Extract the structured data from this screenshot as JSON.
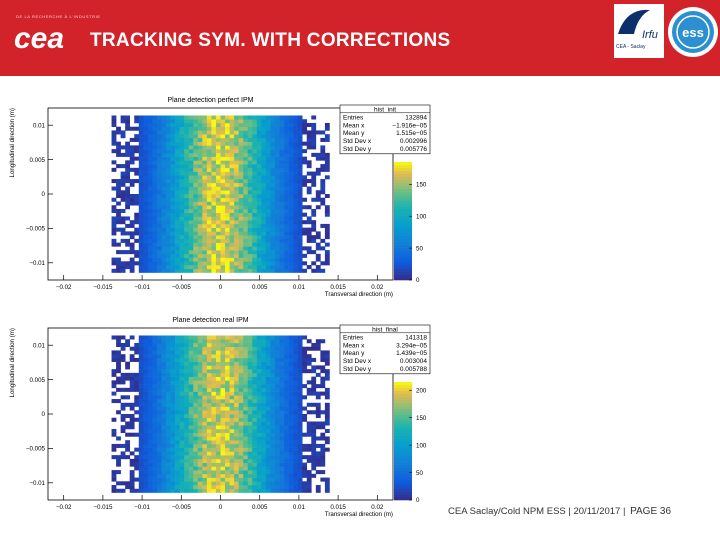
{
  "header": {
    "tagline": "DE LA RECHERCHE À L'INDUSTRIE",
    "logo_text": "cea",
    "title": "TRACKING SYM. WITH CORRECTIONS",
    "lab_logo_text": "Irfu",
    "lab_caption": "CEA - Saclay",
    "partner_logo_text": "ess",
    "brand_color": "#d2232a"
  },
  "footer": {
    "text": "CEA Saclay/Cold NPM ESS | 20/11/2017 |",
    "page": "PAGE 36"
  },
  "chart_data": [
    {
      "type": "heatmap",
      "title": "Plane detection perfect IPM",
      "xlabel": "Transversal direction (m)",
      "ylabel": "Longitudinal direction (m)",
      "xlim": [
        -0.022,
        0.022
      ],
      "ylim": [
        -0.0125,
        0.0125
      ],
      "x_ticks": [
        -0.02,
        -0.015,
        -0.01,
        -0.005,
        0,
        0.005,
        0.01,
        0.015,
        0.02
      ],
      "x_tick_labels": [
        "−0.02",
        "−0.015",
        "−0.01",
        "−0.005",
        "0",
        "0.005",
        "0.01",
        "0.015",
        "0.02"
      ],
      "y_ticks": [
        -0.01,
        -0.005,
        0,
        0.005,
        0.01
      ],
      "y_tick_labels": [
        "−0.01",
        "−0.005",
        "0",
        "0.005",
        "0.01"
      ],
      "z_ticks": [
        0,
        50,
        100,
        150
      ],
      "z_tick_labels": [
        "0",
        "50",
        "100",
        "150"
      ],
      "z_max": 185,
      "distribution": {
        "core_half_width": 0.0105,
        "sigma_x": 0.005,
        "y_min": -0.0115,
        "y_max": 0.0115,
        "peak": 170
      },
      "stats": {
        "name": "hist_init",
        "rows": [
          {
            "label": "Entries",
            "value": "132894"
          },
          {
            "label": "Mean x",
            "value": "−1.916e−05"
          },
          {
            "label": "Mean y",
            "value": "1.515e−05"
          },
          {
            "label": "Std Dev x",
            "value": "0.002996"
          },
          {
            "label": "Std Dev y",
            "value": "0.005776"
          }
        ]
      }
    },
    {
      "type": "heatmap",
      "title": "Plane detection real IPM",
      "xlabel": "Transversal direction (m)",
      "ylabel": "Longitudinal direction (m)",
      "xlim": [
        -0.022,
        0.022
      ],
      "ylim": [
        -0.0125,
        0.0125
      ],
      "x_ticks": [
        -0.02,
        -0.015,
        -0.01,
        -0.005,
        0,
        0.005,
        0.01,
        0.015,
        0.02
      ],
      "x_tick_labels": [
        "−0.02",
        "−0.015",
        "−0.01",
        "−0.005",
        "0",
        "0.005",
        "0.01",
        "0.015",
        "0.02"
      ],
      "y_ticks": [
        -0.01,
        -0.005,
        0,
        0.005,
        0.01
      ],
      "y_tick_labels": [
        "−0.01",
        "−0.005",
        "0",
        "0.005",
        "0.01"
      ],
      "z_ticks": [
        0,
        50,
        100,
        150,
        200
      ],
      "z_tick_labels": [
        "0",
        "50",
        "100",
        "150",
        "200"
      ],
      "z_max": 215,
      "distribution": {
        "core_half_width": 0.0105,
        "sigma_x": 0.005,
        "y_min": -0.0115,
        "y_max": 0.0115,
        "peak": 195
      },
      "stats": {
        "name": "hist_final",
        "rows": [
          {
            "label": "Entries",
            "value": "141318"
          },
          {
            "label": "Mean x",
            "value": "3.294e−05"
          },
          {
            "label": "Mean y",
            "value": "1.439e−05"
          },
          {
            "label": "Std Dev x",
            "value": "0.003004"
          },
          {
            "label": "Std Dev y",
            "value": "0.005788"
          }
        ]
      }
    }
  ]
}
